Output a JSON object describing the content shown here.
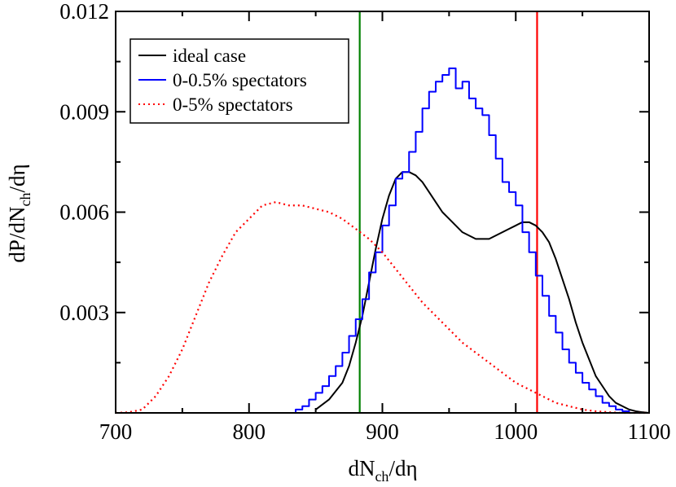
{
  "chart_data": {
    "type": "line",
    "title": "",
    "xlabel": {
      "main": "dN",
      "sub": "ch",
      "tail": "/dη"
    },
    "ylabel": {
      "main": "dP/dN",
      "sub": "ch",
      "tail": "/dη"
    },
    "xlim": [
      700,
      1100
    ],
    "ylim": [
      0,
      0.012
    ],
    "x_ticks": [
      700,
      800,
      900,
      1000,
      1100
    ],
    "x_tick_labels": [
      "700",
      "800",
      "900",
      "1000",
      "1100"
    ],
    "y_ticks": [
      0.003,
      0.006,
      0.009,
      0.012
    ],
    "y_tick_labels": [
      "0.003",
      "0.006",
      "0.009",
      "0.012"
    ],
    "grid": false,
    "legend_position": "top-left",
    "series": [
      {
        "name": "ideal case",
        "color": "#000000",
        "style": "solid",
        "x": [
          850,
          860,
          870,
          875,
          880,
          885,
          890,
          895,
          900,
          905,
          910,
          915,
          920,
          925,
          930,
          935,
          940,
          945,
          950,
          955,
          960,
          965,
          970,
          975,
          980,
          985,
          990,
          995,
          1000,
          1005,
          1010,
          1015,
          1020,
          1025,
          1030,
          1035,
          1040,
          1045,
          1050,
          1055,
          1060,
          1065,
          1070,
          1075,
          1080,
          1085,
          1090,
          1095,
          1100
        ],
        "y": [
          0.0001,
          0.0004,
          0.0009,
          0.0014,
          0.0021,
          0.0029,
          0.0039,
          0.0049,
          0.0058,
          0.0065,
          0.007,
          0.0072,
          0.0072,
          0.0071,
          0.0069,
          0.0066,
          0.0063,
          0.006,
          0.0058,
          0.0056,
          0.0054,
          0.0053,
          0.0052,
          0.0052,
          0.0052,
          0.0053,
          0.0054,
          0.0055,
          0.0056,
          0.0057,
          0.0057,
          0.0056,
          0.0054,
          0.0051,
          0.0046,
          0.004,
          0.0034,
          0.0027,
          0.0021,
          0.0016,
          0.0011,
          0.0008,
          0.0005,
          0.0003,
          0.0002,
          0.0001,
          5e-05,
          2e-05,
          0.0
        ]
      },
      {
        "name": "0-0.5% spectators",
        "color": "#0000ff",
        "style": "step",
        "x": [
          830,
          835,
          840,
          845,
          850,
          855,
          860,
          865,
          870,
          875,
          880,
          885,
          890,
          895,
          900,
          905,
          910,
          915,
          920,
          925,
          930,
          935,
          940,
          945,
          950,
          955,
          960,
          965,
          970,
          975,
          980,
          985,
          990,
          995,
          1000,
          1005,
          1010,
          1015,
          1020,
          1025,
          1030,
          1035,
          1040,
          1045,
          1050,
          1055,
          1060,
          1065,
          1070,
          1075,
          1080,
          1085,
          1090
        ],
        "y": [
          0.0,
          0.0001,
          0.0002,
          0.0004,
          0.0006,
          0.0008,
          0.0011,
          0.0014,
          0.0018,
          0.0023,
          0.0028,
          0.0034,
          0.0042,
          0.0048,
          0.0056,
          0.0062,
          0.007,
          0.0072,
          0.0078,
          0.0084,
          0.0091,
          0.0096,
          0.0099,
          0.0101,
          0.0103,
          0.0097,
          0.0099,
          0.0094,
          0.0091,
          0.0089,
          0.0083,
          0.0076,
          0.0069,
          0.0066,
          0.0062,
          0.0054,
          0.0048,
          0.0041,
          0.0035,
          0.0029,
          0.0024,
          0.0019,
          0.0015,
          0.0012,
          0.0009,
          0.0007,
          0.0005,
          0.0003,
          0.0002,
          0.0001,
          5e-05,
          0.0,
          0.0
        ]
      },
      {
        "name": "0-5% spectators",
        "color": "#ff0000",
        "style": "dotted",
        "x": [
          700,
          710,
          720,
          730,
          740,
          750,
          760,
          770,
          780,
          790,
          800,
          810,
          820,
          830,
          840,
          850,
          860,
          870,
          880,
          890,
          900,
          910,
          920,
          930,
          940,
          950,
          960,
          970,
          980,
          990,
          1000,
          1010,
          1020,
          1030,
          1040,
          1050,
          1060,
          1070,
          1080,
          1090,
          1100
        ],
        "y": [
          0.0,
          2e-05,
          0.0001,
          0.0005,
          0.0011,
          0.0019,
          0.0029,
          0.0039,
          0.0047,
          0.0054,
          0.0058,
          0.0062,
          0.0063,
          0.0062,
          0.0062,
          0.0061,
          0.006,
          0.0058,
          0.0055,
          0.0052,
          0.0048,
          0.0043,
          0.0038,
          0.0033,
          0.0029,
          0.0025,
          0.0021,
          0.0018,
          0.0015,
          0.0012,
          0.0009,
          0.0007,
          0.0005,
          0.0003,
          0.0002,
          0.0001,
          5e-05,
          2e-05,
          0.0,
          0.0,
          0.0
        ]
      }
    ],
    "vertical_lines": [
      {
        "x": 883,
        "color": "#008000"
      },
      {
        "x": 1016,
        "color": "#ff0000"
      }
    ]
  }
}
